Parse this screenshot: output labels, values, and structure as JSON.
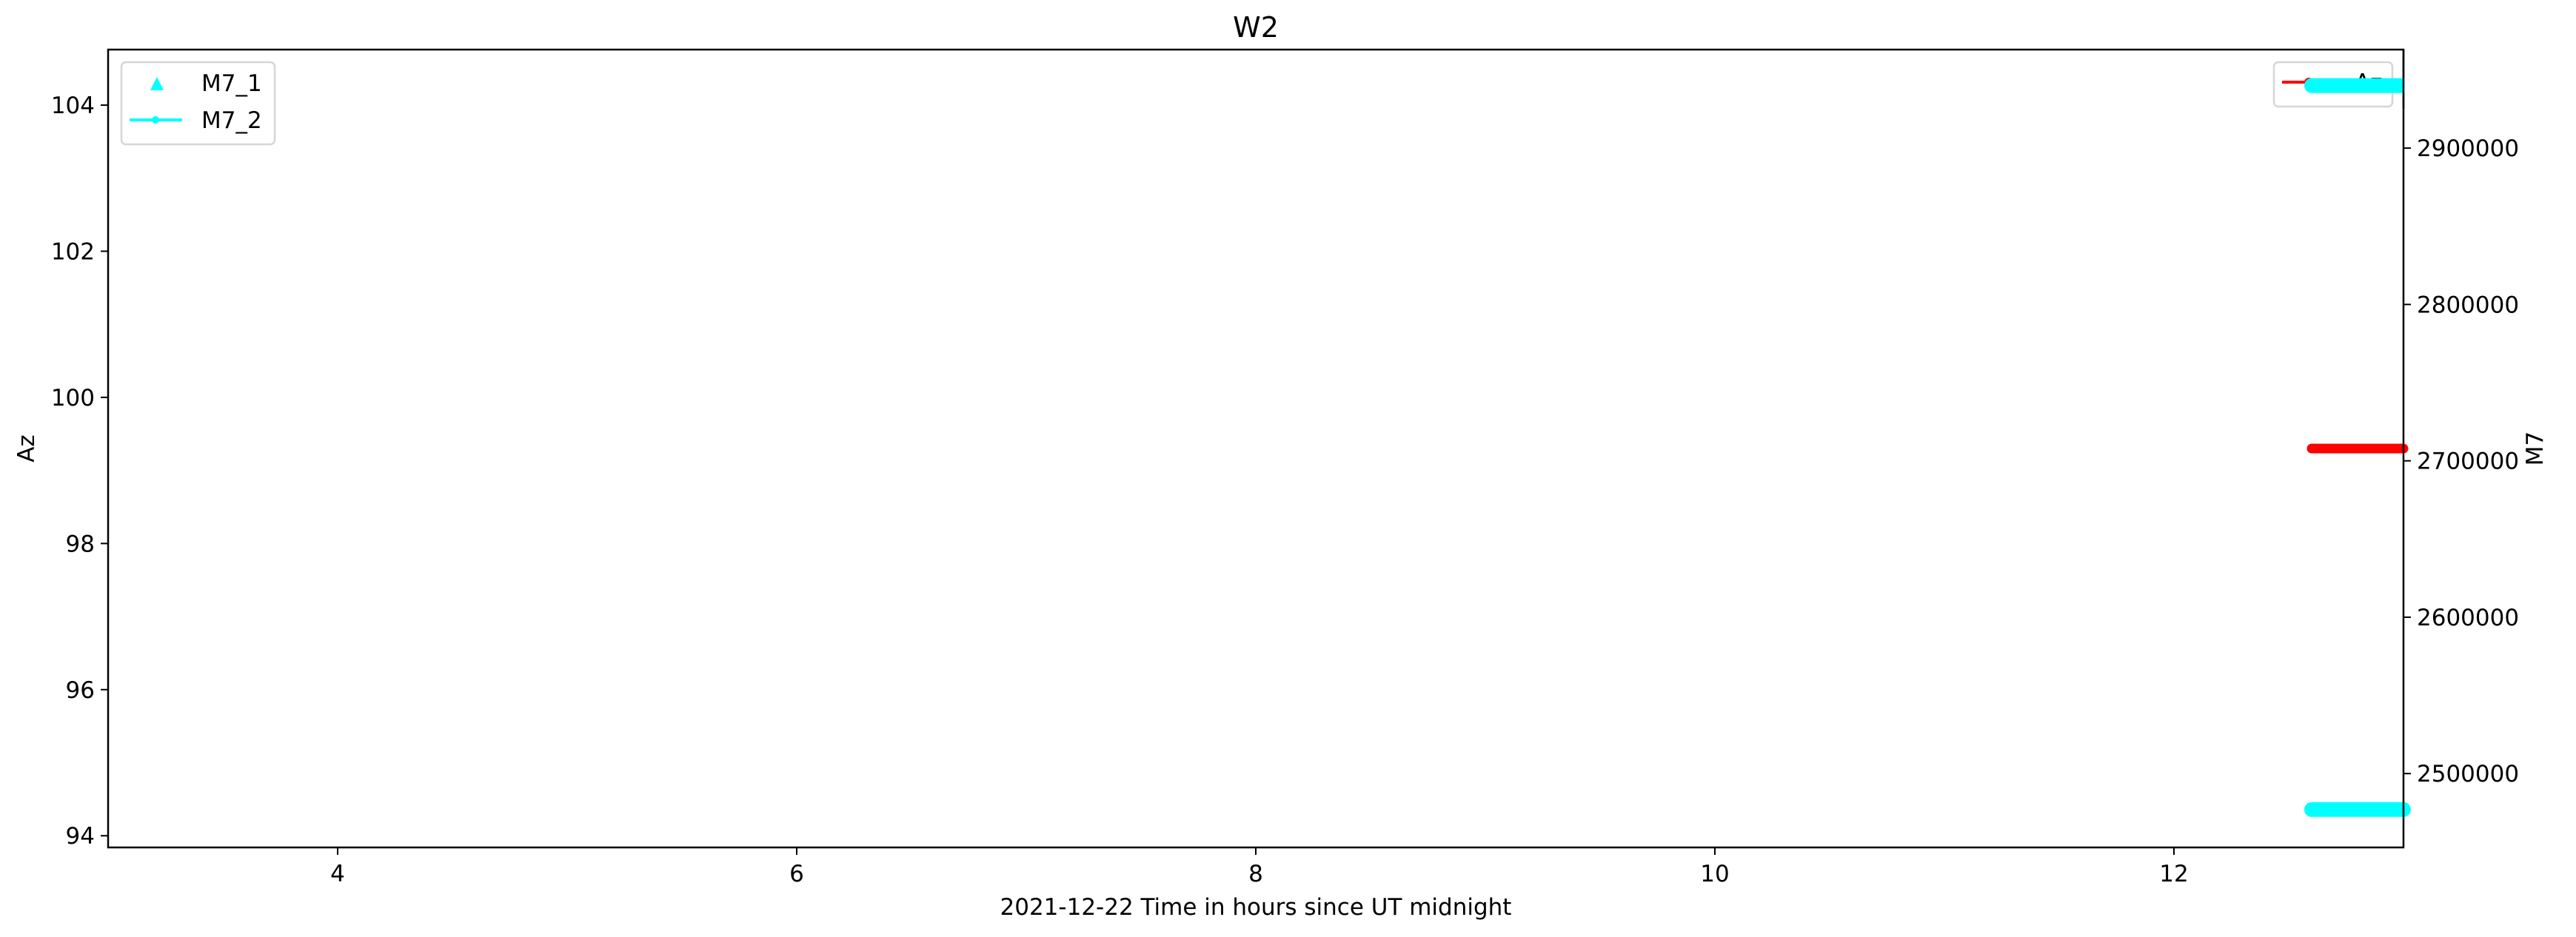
{
  "chart_data": {
    "type": "line",
    "title": "W2",
    "xlabel": "2021-12-22  Time in hours since UT midnight",
    "ylabel_left": "Az",
    "ylabel_right": "M7",
    "xlim": [
      3.0,
      13.0
    ],
    "ylim_left": [
      93.84,
      104.76
    ],
    "ylim_right": [
      2452750,
      2963000
    ],
    "x_ticks": [
      4,
      6,
      8,
      10,
      12
    ],
    "y_ticks_left": [
      94,
      96,
      98,
      100,
      102,
      104
    ],
    "y_ticks_right": [
      2500000,
      2600000,
      2700000,
      2800000,
      2900000
    ],
    "grid": false,
    "series": [
      {
        "name": "Az",
        "axis": "right-legend",
        "yaxis": "left",
        "color": "#ff0000",
        "marker": "dot",
        "x": [
          12.6,
          13.0
        ],
        "y": [
          99.3,
          99.3
        ]
      },
      {
        "name": "M7_1",
        "yaxis": "right",
        "color": "#00ffff",
        "marker": "triangle",
        "x": [
          12.6,
          13.0
        ],
        "y": [
          2940000,
          2940000
        ]
      },
      {
        "name": "M7_2",
        "yaxis": "right",
        "color": "#00ffff",
        "marker": "dot-line",
        "x": [
          12.6,
          13.0
        ],
        "y": [
          2477000,
          2477000
        ]
      }
    ],
    "legends": [
      {
        "placement": "upper-left",
        "entries": [
          "M7_1",
          "M7_2"
        ]
      },
      {
        "placement": "upper-right",
        "entries": [
          "Az"
        ]
      }
    ]
  }
}
